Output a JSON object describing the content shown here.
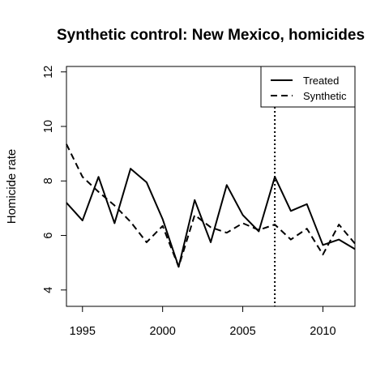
{
  "chart_data": {
    "type": "line",
    "title": "Synthetic control: New Mexico, homicides",
    "xlabel": "",
    "ylabel": "Homicide rate",
    "xlim": [
      1994,
      2012
    ],
    "ylim": [
      3.4,
      12.2
    ],
    "xticks": [
      1995,
      2000,
      2005,
      2010
    ],
    "yticks": [
      4,
      6,
      8,
      10,
      12
    ],
    "legend_position": "top-right",
    "grid": false,
    "treatment_year": 2007,
    "x": [
      1994,
      1995,
      1996,
      1997,
      1998,
      1999,
      2000,
      2001,
      2002,
      2003,
      2004,
      2005,
      2006,
      2007,
      2008,
      2009,
      2010,
      2011,
      2012
    ],
    "series": [
      {
        "name": "Treated",
        "line_style": "solid",
        "color": "#000000",
        "values": [
          7.2,
          6.55,
          8.15,
          6.45,
          8.45,
          7.95,
          6.6,
          4.85,
          7.3,
          5.75,
          7.85,
          6.75,
          6.15,
          8.15,
          6.9,
          7.15,
          5.65,
          5.85,
          5.5
        ]
      },
      {
        "name": "Synthetic",
        "line_style": "dashed",
        "color": "#000000",
        "values": [
          9.35,
          8.15,
          7.6,
          7.1,
          6.5,
          5.75,
          6.35,
          4.85,
          6.75,
          6.3,
          6.1,
          6.45,
          6.2,
          6.4,
          5.85,
          6.25,
          5.3,
          6.4,
          5.7
        ]
      }
    ]
  }
}
